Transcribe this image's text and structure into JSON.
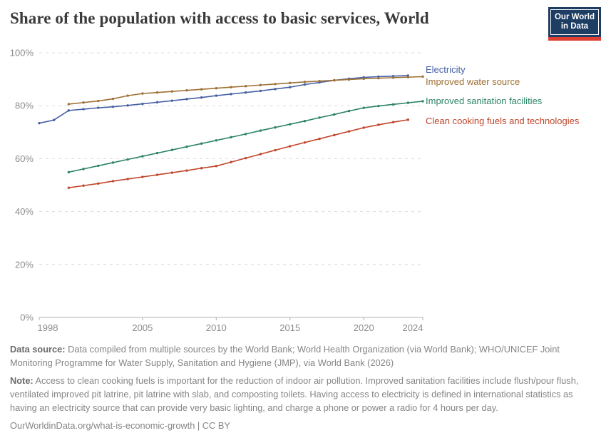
{
  "header": {
    "title": "Share of the population with access to basic services, World",
    "logo": {
      "line1": "Our World",
      "line2": "in Data",
      "bg_color": "#1d3d63",
      "bar_color": "#e04034"
    }
  },
  "chart_data": {
    "type": "line",
    "title": "Share of the population with access to basic services, World",
    "xlabel": "",
    "ylabel": "",
    "x_range": [
      1998,
      2024
    ],
    "y_range": [
      0,
      100
    ],
    "grid": "horizontal-dashed",
    "legend_position": "right",
    "x_ticks": [
      1998,
      2005,
      2010,
      2015,
      2020,
      2024
    ],
    "y_ticks": [
      0,
      20,
      40,
      60,
      80,
      100
    ],
    "y_tick_labels": [
      "0%",
      "20%",
      "40%",
      "60%",
      "80%",
      "100%"
    ],
    "label_dy": [
      -8,
      8,
      0,
      2
    ],
    "series": [
      {
        "id": "electricity",
        "name": "Electricity",
        "color": "#4660a4",
        "x": [
          1998,
          1999,
          2000,
          2001,
          2002,
          2003,
          2004,
          2005,
          2006,
          2007,
          2008,
          2009,
          2010,
          2011,
          2012,
          2013,
          2014,
          2015,
          2016,
          2017,
          2018,
          2019,
          2020,
          2021,
          2022,
          2023
        ],
        "values": [
          73.4,
          74.6,
          78.2,
          78.7,
          79.2,
          79.6,
          80.1,
          80.7,
          81.3,
          81.9,
          82.5,
          83.1,
          83.8,
          84.4,
          85.0,
          85.6,
          86.3,
          87.0,
          88.0,
          88.8,
          89.6,
          90.2,
          90.7,
          91.0,
          91.2,
          91.4
        ]
      },
      {
        "id": "improved-water-source",
        "name": "Improved water source",
        "color": "#9e7035",
        "x": [
          2000,
          2001,
          2002,
          2003,
          2004,
          2005,
          2006,
          2007,
          2008,
          2009,
          2010,
          2011,
          2012,
          2013,
          2014,
          2015,
          2016,
          2017,
          2018,
          2019,
          2020,
          2021,
          2022,
          2023,
          2024
        ],
        "values": [
          80.6,
          81.2,
          81.8,
          82.6,
          83.8,
          84.6,
          85.0,
          85.4,
          85.8,
          86.2,
          86.6,
          87.0,
          87.4,
          87.8,
          88.2,
          88.6,
          89.0,
          89.3,
          89.6,
          89.9,
          90.2,
          90.4,
          90.6,
          90.8,
          91.0
        ]
      },
      {
        "id": "improved-sanitation-facilities",
        "name": "Improved sanitation facilities",
        "color": "#2c8465",
        "x": [
          2000,
          2001,
          2002,
          2003,
          2004,
          2005,
          2006,
          2007,
          2008,
          2009,
          2010,
          2011,
          2012,
          2013,
          2014,
          2015,
          2016,
          2017,
          2018,
          2019,
          2020,
          2021,
          2022,
          2023,
          2024
        ],
        "values": [
          54.9,
          56.1,
          57.3,
          58.5,
          59.7,
          60.9,
          62.1,
          63.3,
          64.5,
          65.7,
          66.9,
          68.1,
          69.3,
          70.6,
          71.8,
          73.0,
          74.2,
          75.5,
          76.7,
          78.0,
          79.2,
          79.9,
          80.5,
          81.1,
          81.7
        ]
      },
      {
        "id": "clean-cooking-fuels",
        "name": "Clean cooking fuels and technologies",
        "color": "#c0452a",
        "x": [
          2000,
          2001,
          2002,
          2003,
          2004,
          2005,
          2006,
          2007,
          2008,
          2009,
          2010,
          2011,
          2012,
          2013,
          2014,
          2015,
          2016,
          2017,
          2018,
          2019,
          2020,
          2021,
          2022,
          2023
        ],
        "values": [
          49.0,
          49.8,
          50.6,
          51.5,
          52.3,
          53.1,
          53.9,
          54.7,
          55.5,
          56.4,
          57.2,
          58.7,
          60.2,
          61.7,
          63.2,
          64.7,
          66.1,
          67.5,
          68.9,
          70.3,
          71.7,
          72.8,
          73.8,
          74.7
        ]
      }
    ]
  },
  "footer": {
    "data_source_label": "Data source:",
    "data_source_text": " Data compiled from multiple sources by the World Bank; World Health Organization (via World Bank); WHO/UNICEF Joint Monitoring Programme for Water Supply, Sanitation and Hygiene (JMP), via World Bank (2026)",
    "note_label": "Note:",
    "note_text": " Access to clean cooking fuels is important for the reduction of indoor air pollution. Improved sanitation facilities include flush/pour flush, ventilated improved pit latrine, pit latrine with slab, and composting toilets. Having access to electricity is defined in international statistics as having an electricity source that can provide very basic lighting, and charge a phone or power a radio for 4 hours per day.",
    "link": "OurWorldinData.org/what-is-economic-growth",
    "divider": " | ",
    "license": "CC BY"
  }
}
